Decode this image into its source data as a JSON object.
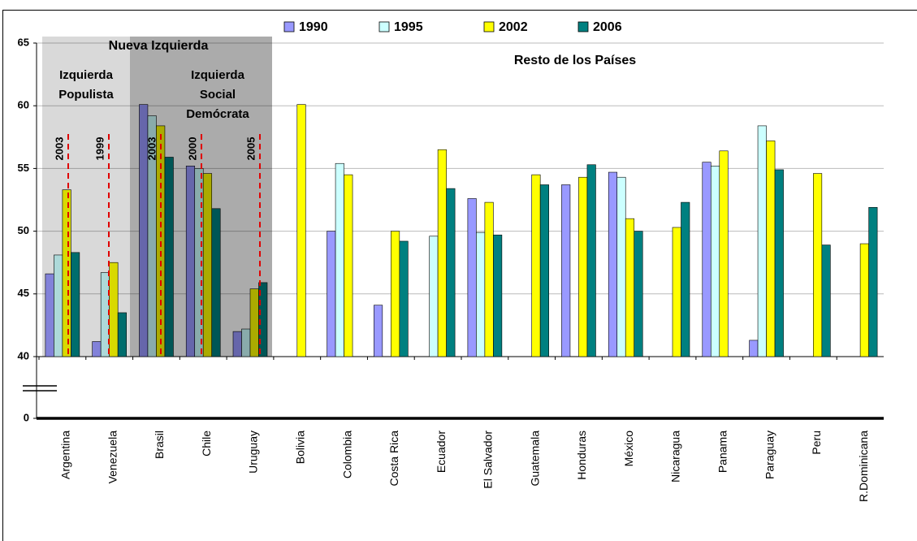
{
  "chart_data": {
    "type": "bar",
    "categories": [
      "Argentina",
      "Venezuela",
      "Brasil",
      "Chile",
      "Uruguay",
      "Bolivia",
      "Colombia",
      "Costa Rica",
      "Ecuador",
      "El Salvador",
      "Guatemala",
      "Honduras",
      "México",
      "Nicaragua",
      "Panama",
      "Paraguay",
      "Peru",
      "R.Dominicana"
    ],
    "series": [
      {
        "name": "1990",
        "color": "#9999ff",
        "values": [
          46.6,
          41.2,
          60.1,
          55.2,
          42.0,
          null,
          50.0,
          44.1,
          null,
          52.6,
          null,
          53.7,
          54.7,
          null,
          55.5,
          41.3,
          null,
          null
        ]
      },
      {
        "name": "1995",
        "color": "#ccffff",
        "values": [
          48.1,
          46.7,
          59.2,
          55.0,
          42.2,
          null,
          55.4,
          null,
          49.6,
          49.9,
          null,
          null,
          54.3,
          null,
          55.2,
          58.4,
          null,
          null
        ]
      },
      {
        "name": "2002",
        "color": "#ffff00",
        "values": [
          53.3,
          47.5,
          58.4,
          54.6,
          45.4,
          60.1,
          54.5,
          50.0,
          56.5,
          52.3,
          54.5,
          54.3,
          51.0,
          50.3,
          56.4,
          57.2,
          54.6,
          49.0
        ]
      },
      {
        "name": "2006",
        "color": "#008080",
        "values": [
          48.3,
          43.5,
          55.9,
          51.8,
          45.9,
          null,
          null,
          49.2,
          53.4,
          49.7,
          53.7,
          55.3,
          50.0,
          52.3,
          null,
          54.9,
          48.9,
          51.9
        ]
      }
    ],
    "ylim": [
      0,
      65
    ],
    "yticks": [
      0,
      40,
      45,
      50,
      55,
      60,
      65
    ],
    "axis_break": [
      0,
      40
    ],
    "grid": true,
    "legend": "top",
    "annotations": {
      "group_title": "Nueva Izquierda",
      "populist": [
        "Izquierda",
        "Populista"
      ],
      "social": [
        "Izquierda",
        "Social",
        "Demócrata"
      ],
      "rest": "Resto de los Países",
      "markers": [
        "2003",
        "1999",
        "2003",
        "2000",
        "2005"
      ]
    }
  }
}
